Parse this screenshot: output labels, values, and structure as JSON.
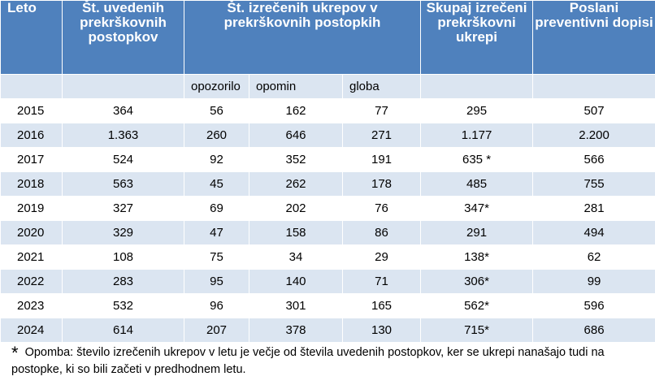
{
  "header": {
    "leto": "Leto",
    "uvedeni": "Št. uvedenih prekrškovnih postopkov",
    "izreceni_group": "Št. izrečenih ukrepov v prekrškovnih postopkih",
    "skupaj": "Skupaj izrečeni prekrškovni ukrepi",
    "poslani": "Poslani preventivni dopisi"
  },
  "subheader": {
    "opozorilo": "opozorilo",
    "opomin": "opomin",
    "globa": "globa"
  },
  "rows": [
    {
      "leto": "2015",
      "uvedeni": "364",
      "opozorilo": "56",
      "opomin": "162",
      "globa": "77",
      "skupaj": "295",
      "poslani": "507"
    },
    {
      "leto": "2016",
      "uvedeni": "1.363",
      "opozorilo": "260",
      "opomin": "646",
      "globa": "271",
      "skupaj": "1.177",
      "poslani": "2.200"
    },
    {
      "leto": "2017",
      "uvedeni": "524",
      "opozorilo": "92",
      "opomin": "352",
      "globa": "191",
      "skupaj": "635 *",
      "poslani": "566"
    },
    {
      "leto": "2018",
      "uvedeni": "563",
      "opozorilo": "45",
      "opomin": "262",
      "globa": "178",
      "skupaj": "485",
      "poslani": "755"
    },
    {
      "leto": "2019",
      "uvedeni": "327",
      "opozorilo": "69",
      "opomin": "202",
      "globa": "76",
      "skupaj": "347*",
      "poslani": "281"
    },
    {
      "leto": "2020",
      "uvedeni": "329",
      "opozorilo": "47",
      "opomin": "158",
      "globa": "86",
      "skupaj": "291",
      "poslani": "494"
    },
    {
      "leto": "2021",
      "uvedeni": "108",
      "opozorilo": "75",
      "opomin": "34",
      "globa": "29",
      "skupaj": "138*",
      "poslani": "62"
    },
    {
      "leto": "2022",
      "uvedeni": "283",
      "opozorilo": "95",
      "opomin": "140",
      "globa": "71",
      "skupaj": "306*",
      "poslani": "99"
    },
    {
      "leto": "2023",
      "uvedeni": "532",
      "opozorilo": "96",
      "opomin": "301",
      "globa": "165",
      "skupaj": "562*",
      "poslani": "596"
    },
    {
      "leto": "2024",
      "uvedeni": "614",
      "opozorilo": "207",
      "opomin": "378",
      "globa": "130",
      "skupaj": "715*",
      "poslani": "686"
    }
  ],
  "footnote": {
    "marker": "*",
    "text": "Opomba: število izrečenih ukrepov v letu je večje od števila uvedenih postopkov, ker se ukrepi nanašajo tudi na postopke, ki so bili začeti v predhodnem letu."
  },
  "colors": {
    "header_bg": "#4f81bd",
    "stripe": "#dbe5f1",
    "header_text": "#ffffff"
  }
}
